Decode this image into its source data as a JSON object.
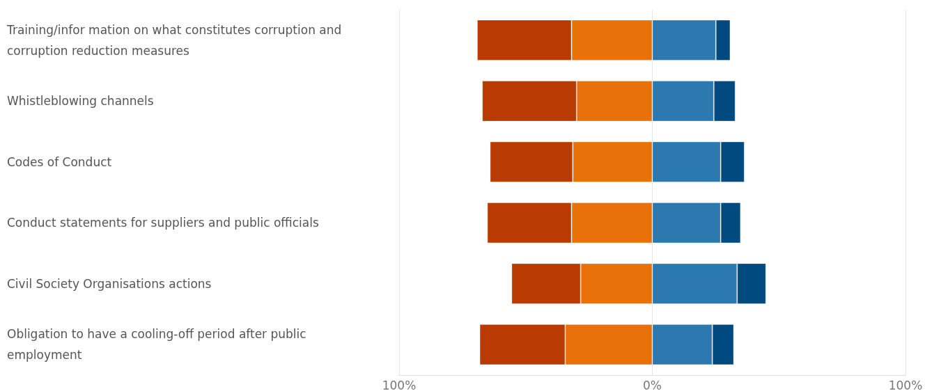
{
  "chart_data": {
    "type": "bar",
    "orientation": "horizontal",
    "stacked": true,
    "grid": "x",
    "categories": [
      "Training/infor mation on what constitutes corruption and corruption reduction measures",
      "Whistleblowing channels",
      "Codes of Conduct",
      "Conduct statements for suppliers and public officials",
      "Civil Society Organisations actions",
      "Obligation to have a cooling-off period after public employment"
    ],
    "series": [
      {
        "color": "#e8710a",
        "values": [
          -31.9,
          -29.9,
          -31.4,
          -31.9,
          -28.3,
          -34.4
        ]
      },
      {
        "color": "#b93a02",
        "values": [
          -37.3,
          -37.3,
          -32.7,
          -33.3,
          -27.3,
          -33.8
        ]
      },
      {
        "color": "#2c79b0",
        "values": [
          25.1,
          24.3,
          27.0,
          27.0,
          33.5,
          23.7
        ]
      },
      {
        "color": "#004a80",
        "values": [
          5.7,
          8.5,
          9.4,
          7.9,
          11.4,
          8.5
        ]
      }
    ],
    "xlim": [
      -100,
      100
    ],
    "xticks": [
      {
        "value": -100,
        "label": "100%"
      },
      {
        "value": 0,
        "label": "0%"
      },
      {
        "value": 100,
        "label": "100%"
      }
    ]
  }
}
